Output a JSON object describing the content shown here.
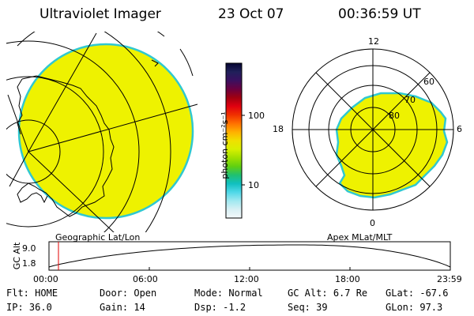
{
  "header": {
    "instrument": "Ultraviolet Imager",
    "date": "23 Oct 07",
    "time": "00:36:59 UT"
  },
  "left_panel": {
    "caption": "Geographic Lat/Lon"
  },
  "right_panel": {
    "caption": "Apex MLat/MLT",
    "mlt_labels": [
      "12",
      "18",
      "6",
      "0"
    ],
    "lat_labels": [
      "60",
      "70",
      "80"
    ]
  },
  "colorbar": {
    "unit_label": "photon cm⁻²s⁻¹",
    "tick_labels": [
      "100",
      "10"
    ],
    "colors": [
      "#050530",
      "#20205a",
      "#3a1060",
      "#6a0040",
      "#a00010",
      "#e00010",
      "#f03000",
      "#ff7000",
      "#ffb000",
      "#f0e000",
      "#d8f000",
      "#a0e000",
      "#60d010",
      "#20c070",
      "#10c0c0",
      "#50d8e8",
      "#a0e8f0",
      "#d8f0f4",
      "#f4f8fa"
    ],
    "fill_color": "#eef200",
    "edge_color": "#30c8d0"
  },
  "altitude_plot": {
    "ylabel": "GC Alt",
    "y_ticks": [
      "9.0",
      "1.8"
    ],
    "x_ticks": [
      "00:00",
      "06:00",
      "12:00",
      "18:00",
      "23:59"
    ]
  },
  "info": {
    "row1": [
      {
        "label": "Flt:",
        "value": "HOME"
      },
      {
        "label": "Door:",
        "value": "Open"
      },
      {
        "label": "Mode:",
        "value": "Normal"
      },
      {
        "label": "GC Alt:",
        "value": "6.7 Re"
      },
      {
        "label": "GLat:",
        "value": "-67.6"
      }
    ],
    "row2": [
      {
        "label": "IP:",
        "value": "36.0"
      },
      {
        "label": "Gain:",
        "value": "14"
      },
      {
        "label": "Dsp:",
        "value": "-1.2"
      },
      {
        "label": "Seq:",
        "value": "39"
      },
      {
        "label": "GLon:",
        "value": "97.3"
      }
    ]
  }
}
